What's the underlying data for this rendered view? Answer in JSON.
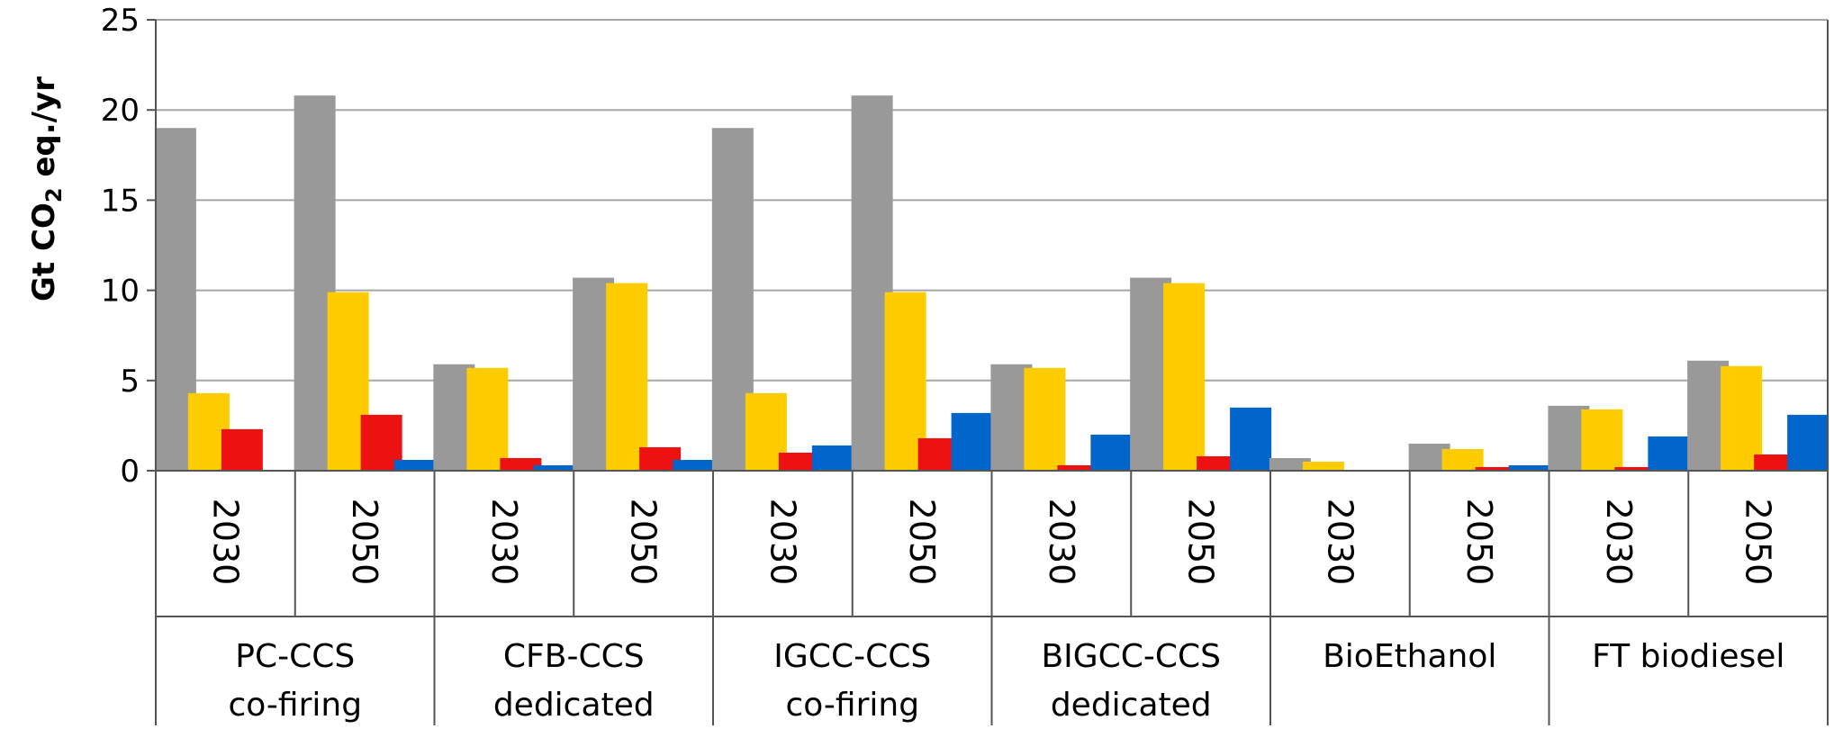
{
  "chart_data": {
    "type": "bar",
    "ylabel_parts": {
      "pre": "Gt CO",
      "sub": "2",
      "post": " eq./yr"
    },
    "ylim": [
      0,
      25
    ],
    "yticks": [
      0,
      5,
      10,
      15,
      20,
      25
    ],
    "grid": true,
    "categories": [
      "2030",
      "2050",
      "2030",
      "2050",
      "2030",
      "2050",
      "2030",
      "2050",
      "2030",
      "2050",
      "2030",
      "2050"
    ],
    "groups": [
      {
        "line1": "PC-CCS",
        "line2": "co-firing"
      },
      {
        "line1": "CFB-CCS",
        "line2": "dedicated"
      },
      {
        "line1": "IGCC-CCS",
        "line2": "co-firing"
      },
      {
        "line1": "BIGCC-CCS",
        "line2": "dedicated"
      },
      {
        "line1": "BioEthanol",
        "line2": ""
      },
      {
        "line1": "FT biodiesel",
        "line2": ""
      }
    ],
    "series": [
      {
        "color": "#999999",
        "values": [
          19.0,
          20.8,
          5.9,
          10.7,
          19.0,
          20.8,
          5.9,
          10.7,
          0.7,
          1.5,
          3.6,
          6.1
        ]
      },
      {
        "color": "#FFCC00",
        "values": [
          4.3,
          9.9,
          5.7,
          10.4,
          4.3,
          9.9,
          5.7,
          10.4,
          0.5,
          1.2,
          3.4,
          5.8
        ]
      },
      {
        "color": "#EE1111",
        "values": [
          2.3,
          3.1,
          0.7,
          1.3,
          1.0,
          1.8,
          0.3,
          0.8,
          0.0,
          0.2,
          0.2,
          0.9
        ]
      },
      {
        "color": "#0066CC",
        "values": [
          0.0,
          0.6,
          0.3,
          0.6,
          1.4,
          3.2,
          2.0,
          3.5,
          0.0,
          0.3,
          1.9,
          3.1
        ]
      }
    ]
  }
}
